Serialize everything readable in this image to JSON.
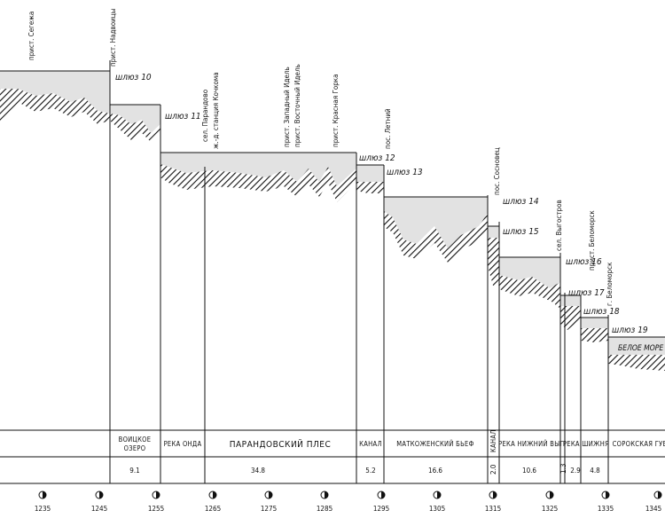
{
  "places": [
    {
      "id": "segezha",
      "text": "прист. Сегежа"
    },
    {
      "id": "nadvoitsy",
      "text": "прист. Надвоицы"
    },
    {
      "id": "parandovo",
      "text": "сел. Парандово"
    },
    {
      "id": "kochkoma",
      "text": "ж.-д. станция Кочкома"
    },
    {
      "id": "idel",
      "text": "прист. Западный Идель"
    },
    {
      "id": "videl",
      "text": "прист. Восточный Идель"
    },
    {
      "id": "gorka",
      "text": "прист. Красная Горка"
    },
    {
      "id": "letniy",
      "text": "пос. Летний"
    },
    {
      "id": "sosnovets",
      "text": "пос. Сосновец"
    },
    {
      "id": "vygostrov",
      "text": "сел. Выгостров"
    },
    {
      "id": "pbelomorsk",
      "text": "прист. Беломорск"
    },
    {
      "id": "gbelomorsk",
      "text": "г. Беломорск"
    }
  ],
  "locks": [
    {
      "id": "l10",
      "text": "шлюз 10"
    },
    {
      "id": "l11",
      "text": "шлюз 11"
    },
    {
      "id": "l12",
      "text": "шлюз 12"
    },
    {
      "id": "l13",
      "text": "шлюз 13"
    },
    {
      "id": "l14",
      "text": "шлюз 14"
    },
    {
      "id": "l15",
      "text": "шлюз 15"
    },
    {
      "id": "l16",
      "text": "шлюз 16"
    },
    {
      "id": "l17",
      "text": "шлюз 17"
    },
    {
      "id": "l18",
      "text": "шлюз 18"
    },
    {
      "id": "l19",
      "text": "шлюз 19"
    }
  ],
  "sea_label": "БЕЛОЕ МОРЕ",
  "sections": [
    {
      "id": "voitskoe",
      "lines": [
        "ВОИЦКОЕ",
        "ОЗЕРО"
      ],
      "distance": "9.1"
    },
    {
      "id": "onda",
      "lines": [
        "РЕКА ОНДА"
      ],
      "distance": ""
    },
    {
      "id": "parandovsky",
      "lines": [
        "ПАРАНДОВСКИЙ ПЛЕС"
      ],
      "distance": "34.8"
    },
    {
      "id": "kanal1",
      "lines": [
        "КАНАЛ"
      ],
      "distance": "5.2"
    },
    {
      "id": "matko",
      "lines": [
        "МАТКОЖЕНСКИЙ БЬЕФ"
      ],
      "distance": "16.6"
    },
    {
      "id": "kanal2",
      "lines": [
        "КАНАЛ"
      ],
      "distance": "2.0"
    },
    {
      "id": "nvyg",
      "lines": [
        "РЕКА НИЖНИЙ ВЫГ"
      ],
      "distance": "10.6"
    },
    {
      "id": "small",
      "lines": [
        ""
      ],
      "distance": "1.3"
    },
    {
      "id": "shizhnya",
      "lines": [
        "РЕКА ШИЖНЯ"
      ],
      "distance": "2.9"
    },
    {
      "id": "shizhnya2",
      "lines": [
        ""
      ],
      "distance": "4.8"
    },
    {
      "id": "soroka",
      "lines": [
        "СОРОКСКАЯ ГУБА"
      ],
      "distance": ""
    }
  ],
  "km_ticks": [
    "1235",
    "1245",
    "1255",
    "1265",
    "1275",
    "1285",
    "1295",
    "1305",
    "1315",
    "1325",
    "1335",
    "1345"
  ]
}
